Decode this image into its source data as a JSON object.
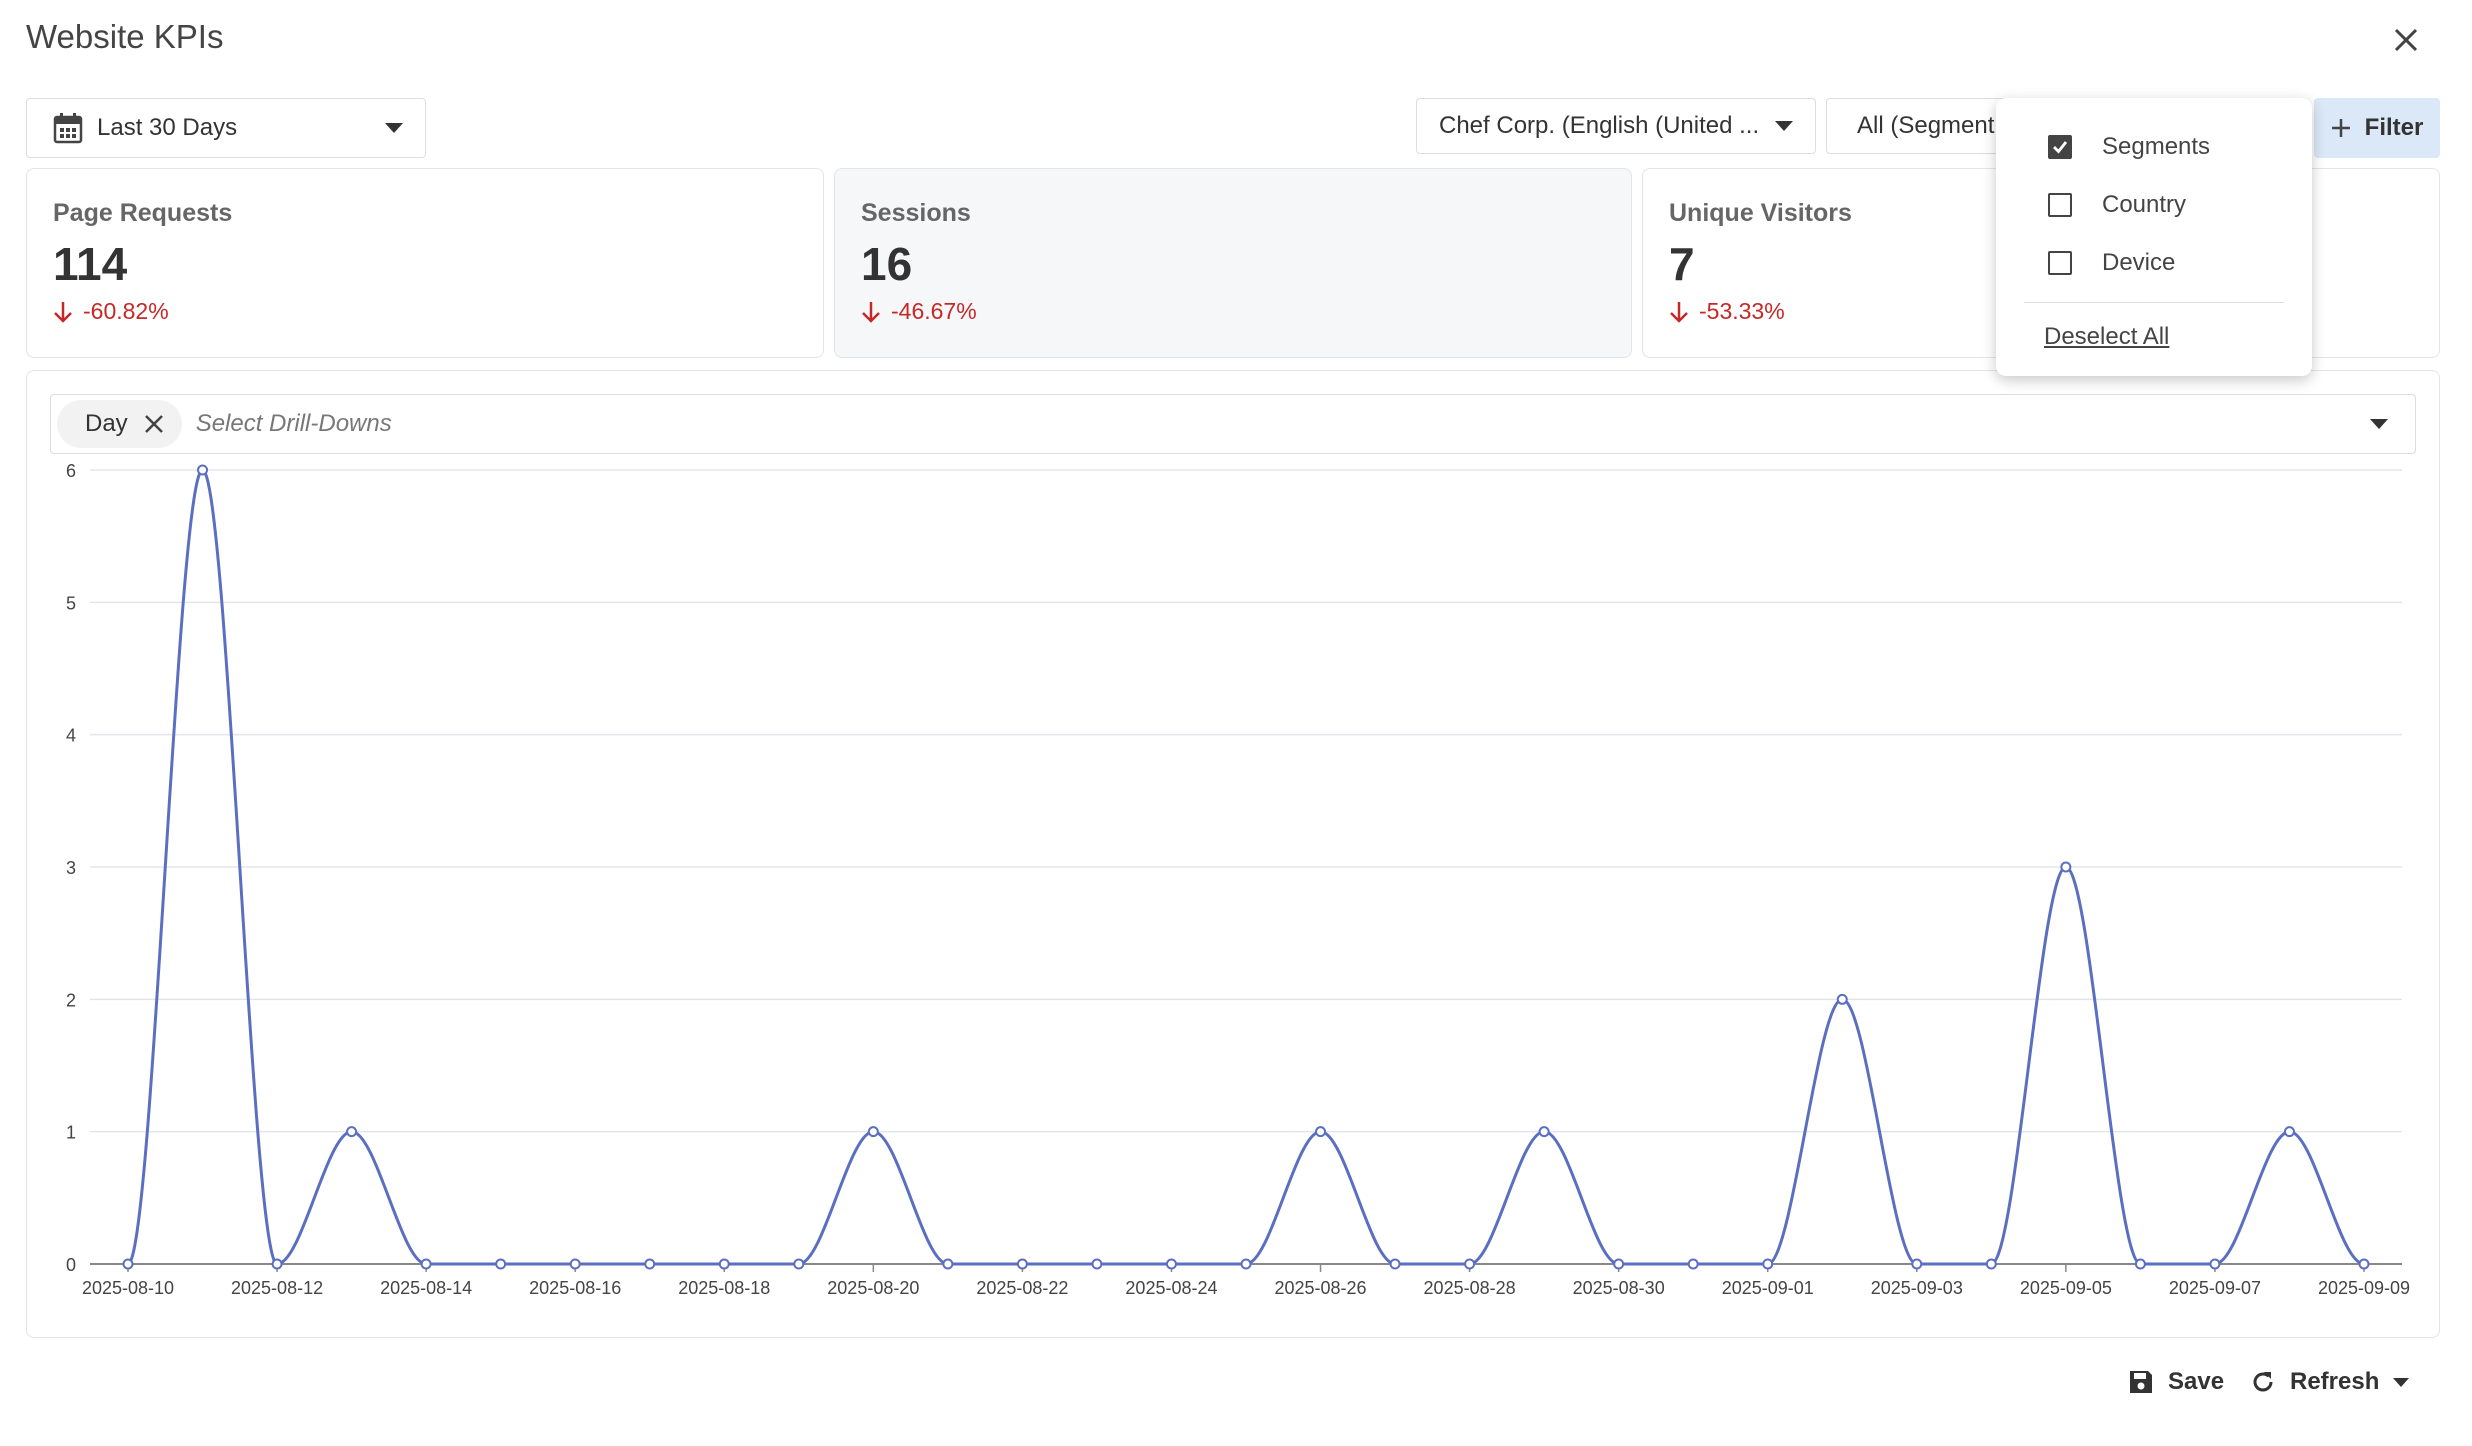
{
  "window": {
    "title": "Website KPIs"
  },
  "toolbar": {
    "date_range": "Last 30 Days",
    "site": "Chef Corp. (English (United ...",
    "segments": "All (Segment",
    "filter_label": "Filter"
  },
  "kpis": [
    {
      "name": "Page Requests",
      "value": "114",
      "change": "-60.82%"
    },
    {
      "name": "Sessions",
      "value": "16",
      "change": "-46.67%"
    },
    {
      "name": "Unique Visitors",
      "value": "7",
      "change": "-53.33%"
    }
  ],
  "filter_menu": {
    "items": [
      {
        "label": "Segments",
        "checked": true
      },
      {
        "label": "Country",
        "checked": false
      },
      {
        "label": "Device",
        "checked": false
      }
    ],
    "deselect_all": "Deselect All"
  },
  "drilldown": {
    "chip_label": "Day",
    "placeholder": "Select Drill-Downs"
  },
  "chart_data": {
    "type": "line",
    "x": [
      "2025-08-10",
      "2025-08-11",
      "2025-08-12",
      "2025-08-13",
      "2025-08-14",
      "2025-08-15",
      "2025-08-16",
      "2025-08-17",
      "2025-08-18",
      "2025-08-19",
      "2025-08-20",
      "2025-08-21",
      "2025-08-22",
      "2025-08-23",
      "2025-08-24",
      "2025-08-25",
      "2025-08-26",
      "2025-08-27",
      "2025-08-28",
      "2025-08-29",
      "2025-08-30",
      "2025-08-31",
      "2025-09-01",
      "2025-09-02",
      "2025-09-03",
      "2025-09-04",
      "2025-09-05",
      "2025-09-06",
      "2025-09-07",
      "2025-09-08",
      "2025-09-09"
    ],
    "x_tick_labels": [
      "2025-08-10",
      "2025-08-12",
      "2025-08-14",
      "2025-08-16",
      "2025-08-18",
      "2025-08-20",
      "2025-08-22",
      "2025-08-24",
      "2025-08-26",
      "2025-08-28",
      "2025-08-30",
      "2025-09-01",
      "2025-09-03",
      "2025-09-05",
      "2025-09-07",
      "2025-09-09"
    ],
    "series": [
      {
        "values": [
          0,
          6,
          0,
          1,
          0,
          0,
          0,
          0,
          0,
          0,
          1,
          0,
          0,
          0,
          0,
          0,
          1,
          0,
          0,
          1,
          0,
          0,
          0,
          2,
          0,
          0,
          3,
          0,
          0,
          1,
          0
        ]
      }
    ],
    "ylim": [
      0,
      6
    ],
    "y_ticks": [
      0,
      1,
      2,
      3,
      4,
      5,
      6
    ],
    "grid": true,
    "legend": "none",
    "line_color": "#5b6fc0"
  },
  "footer": {
    "save_label": "Save",
    "refresh_label": "Refresh"
  }
}
